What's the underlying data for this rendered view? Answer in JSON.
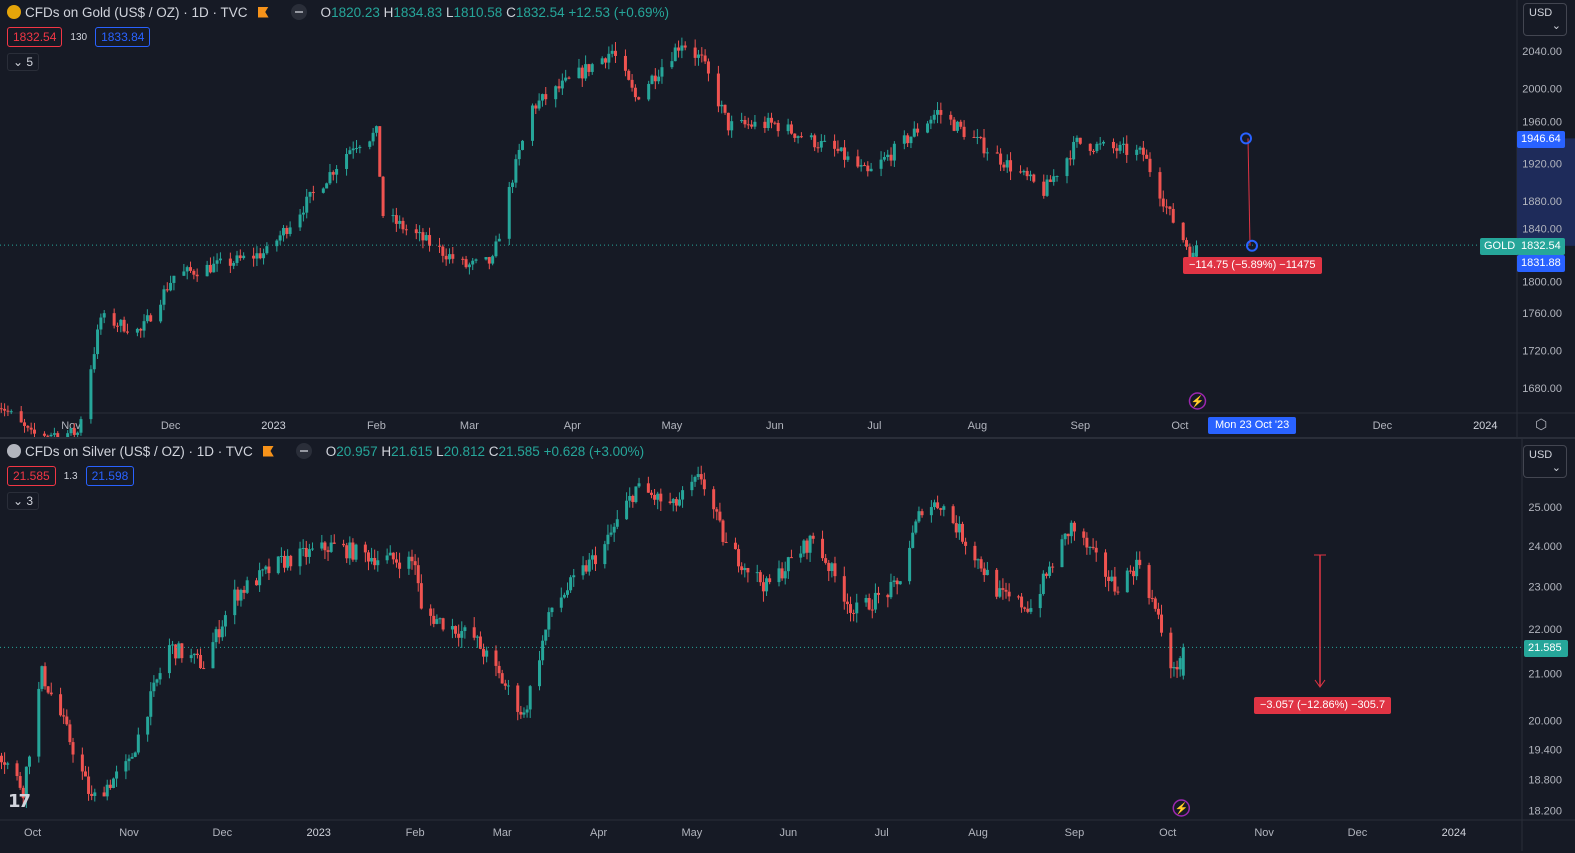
{
  "gold": {
    "title": "CFDs on Gold (US$ / OZ) · 1D · TVC",
    "ohlc": {
      "o": "1820.23",
      "h": "1834.83",
      "l": "1810.58",
      "c": "1832.54",
      "chg": "+12.53 (+0.69%)"
    },
    "bid": "1832.54",
    "spread": "130",
    "ask": "1833.84",
    "indicators": "5",
    "currency": "USD",
    "symbol_tag": "GOLD",
    "last_price": "1832.54",
    "measure_top": "1946.64",
    "measure_bottom": "1831.88",
    "measure_label": "−114.75 (−5.89%) −11475",
    "crosshair_date": "Mon 23 Oct '23",
    "icon_color": "#e5a50a"
  },
  "silver": {
    "title": "CFDs on Silver (US$ / OZ) · 1D · TVC",
    "ohlc": {
      "o": "20.957",
      "h": "21.615",
      "l": "20.812",
      "c": "21.585",
      "chg": "+0.628 (+3.00%)"
    },
    "bid": "21.585",
    "spread": "1.3",
    "ask": "21.598",
    "indicators": "3",
    "currency": "USD",
    "last_price": "21.585",
    "measure_label": "−3.057 (−12.86%) −305.7",
    "icon_color": "#b2b5be"
  },
  "colors": {
    "up": "#26a69a",
    "down": "#ef5350",
    "accent": "#2962ff",
    "bg": "#161a25"
  },
  "chart_data": [
    {
      "type": "candlestick",
      "name": "Gold",
      "scale": "linear",
      "price_ticks": [
        2040,
        2000,
        1960,
        1920,
        1880,
        1840,
        1800,
        1760,
        1720,
        1680
      ],
      "time_ticks": [
        [
          "Nov",
          "2022-11-01"
        ],
        [
          "Dec",
          "2022-12-01"
        ],
        [
          "2023",
          "2023-01-01"
        ],
        [
          "Feb",
          "2023-02-01"
        ],
        [
          "Mar",
          "2023-03-01"
        ],
        [
          "Apr",
          "2023-04-01"
        ],
        [
          "May",
          "2023-05-01"
        ],
        [
          "Jun",
          "2023-06-01"
        ],
        [
          "Jul",
          "2023-07-01"
        ],
        [
          "Aug",
          "2023-08-01"
        ],
        [
          "Sep",
          "2023-09-01"
        ],
        [
          "Oct",
          "2023-10-01"
        ],
        [
          "Dec",
          "2023-12-01"
        ],
        [
          "2024",
          "2024-01-01"
        ]
      ],
      "approx_closes": [
        [
          "2022-10-10",
          1665
        ],
        [
          "2022-10-20",
          1630
        ],
        [
          "2022-11-03",
          1632
        ],
        [
          "2022-11-10",
          1755
        ],
        [
          "2022-11-22",
          1740
        ],
        [
          "2022-12-02",
          1800
        ],
        [
          "2022-12-20",
          1815
        ],
        [
          "2022-12-30",
          1825
        ],
        [
          "2023-01-25",
          1940
        ],
        [
          "2023-02-01",
          1952
        ],
        [
          "2023-02-03",
          1865
        ],
        [
          "2023-02-28",
          1810
        ],
        [
          "2023-03-08",
          1815
        ],
        [
          "2023-03-14",
          1905
        ],
        [
          "2023-03-20",
          1980
        ],
        [
          "2023-04-13",
          2040
        ],
        [
          "2023-04-20",
          1990
        ],
        [
          "2023-05-04",
          2050
        ],
        [
          "2023-05-10",
          2030
        ],
        [
          "2023-05-18",
          1960
        ],
        [
          "2023-06-01",
          1962
        ],
        [
          "2023-06-20",
          1932
        ],
        [
          "2023-06-29",
          1908
        ],
        [
          "2023-07-20",
          1975
        ],
        [
          "2023-08-21",
          1890
        ],
        [
          "2023-08-31",
          1942
        ],
        [
          "2023-09-20",
          1930
        ],
        [
          "2023-09-28",
          1865
        ],
        [
          "2023-10-05",
          1820
        ],
        [
          "2023-10-06",
          1832.54
        ]
      ]
    },
    {
      "type": "candlestick",
      "name": "Silver",
      "scale": "log",
      "price_ticks": [
        25,
        24,
        23,
        22,
        21,
        20,
        19.4,
        18.8,
        18.2
      ],
      "time_ticks": [
        [
          "Oct",
          "2022-10-01"
        ],
        [
          "Nov",
          "2022-11-01"
        ],
        [
          "Dec",
          "2022-12-01"
        ],
        [
          "2023",
          "2023-01-01"
        ],
        [
          "Feb",
          "2023-02-01"
        ],
        [
          "Mar",
          "2023-03-01"
        ],
        [
          "Apr",
          "2023-04-01"
        ],
        [
          "May",
          "2023-05-01"
        ],
        [
          "Jun",
          "2023-06-01"
        ],
        [
          "Jul",
          "2023-07-01"
        ],
        [
          "Aug",
          "2023-08-01"
        ],
        [
          "Sep",
          "2023-09-01"
        ],
        [
          "Oct",
          "2023-10-01"
        ],
        [
          "Nov",
          "2023-11-01"
        ],
        [
          "Dec",
          "2023-12-01"
        ],
        [
          "2024",
          "2024-01-01"
        ]
      ],
      "approx_closes": [
        [
          "2022-09-20",
          19.4
        ],
        [
          "2022-09-28",
          18.6
        ],
        [
          "2022-10-04",
          21.0
        ],
        [
          "2022-10-10",
          20.1
        ],
        [
          "2022-10-20",
          18.4
        ],
        [
          "2022-11-01",
          19.1
        ],
        [
          "2022-11-14",
          21.6
        ],
        [
          "2022-11-25",
          21.2
        ],
        [
          "2022-12-05",
          22.8
        ],
        [
          "2022-12-20",
          23.6
        ],
        [
          "2023-01-05",
          24.0
        ],
        [
          "2023-01-20",
          23.7
        ],
        [
          "2023-02-01",
          23.6
        ],
        [
          "2023-02-03",
          22.4
        ],
        [
          "2023-02-20",
          21.8
        ],
        [
          "2023-03-08",
          20.1
        ],
        [
          "2023-03-17",
          22.5
        ],
        [
          "2023-04-03",
          24.0
        ],
        [
          "2023-04-13",
          25.5
        ],
        [
          "2023-04-25",
          25.0
        ],
        [
          "2023-05-04",
          25.8
        ],
        [
          "2023-05-12",
          24.0
        ],
        [
          "2023-05-25",
          23.0
        ],
        [
          "2023-06-09",
          24.2
        ],
        [
          "2023-06-22",
          22.4
        ],
        [
          "2023-07-06",
          23.0
        ],
        [
          "2023-07-14",
          25.0
        ],
        [
          "2023-07-20",
          25.1
        ],
        [
          "2023-08-08",
          22.8
        ],
        [
          "2023-08-18",
          22.5
        ],
        [
          "2023-08-31",
          24.5
        ],
        [
          "2023-09-14",
          23.0
        ],
        [
          "2023-09-22",
          23.6
        ],
        [
          "2023-09-28",
          22.2
        ],
        [
          "2023-10-03",
          21.0
        ],
        [
          "2023-10-06",
          21.585
        ]
      ]
    }
  ]
}
